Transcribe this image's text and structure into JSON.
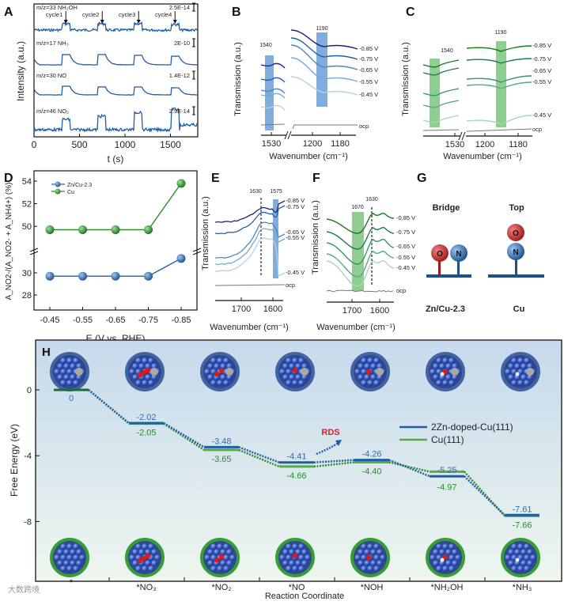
{
  "colors": {
    "blue_dark": "#1a237e",
    "blue": "#1f5fa8",
    "blue_band": "#6b9fd6",
    "green": "#2e8b2e",
    "green_band": "#7cc47c",
    "red": "#e02020"
  },
  "chart_data": [
    {
      "panel": "A",
      "type": "line",
      "xlabel": "t (s)",
      "ylabel": "Intensity (a.u.)",
      "xlim": [
        0,
        1800
      ],
      "xticks": [
        "0",
        "500",
        "1000",
        "1500"
      ],
      "cycles": [
        "cycle1",
        "cycle2",
        "cycle3",
        "cycle4"
      ],
      "cycle_times": [
        350,
        750,
        1150,
        1550
      ],
      "series": [
        {
          "name": "m/z=33 NH₂OH",
          "scale": "2.5E-14"
        },
        {
          "name": "m/z=17 NH₃",
          "scale": "2E-10"
        },
        {
          "name": "m/z=30 NO",
          "scale": "1.4E-12"
        },
        {
          "name": "m/z=46 NO₂",
          "scale": "2.9E-14"
        }
      ]
    },
    {
      "panel": "B",
      "type": "line",
      "xlabel": "Wavenumber (cm⁻¹)",
      "ylabel": "Transmission (a.u.)",
      "xticks": [
        "1530",
        "1200",
        "1180"
      ],
      "bands": [
        "1540",
        "1190"
      ],
      "series": [
        "-0.85 V",
        "-0.75 V",
        "-0.65 V",
        "-0.55 V",
        "-0.45 V",
        "ocp"
      ]
    },
    {
      "panel": "C",
      "type": "line",
      "xlabel": "Wavenumber (cm⁻¹)",
      "ylabel": "Transmission (a.u.)",
      "xticks": [
        "1530",
        "1200",
        "1180"
      ],
      "bands": [
        "1540",
        "1190"
      ],
      "series": [
        "-0.85 V",
        "-0.75 V",
        "-0.65 V",
        "-0.55 V",
        "-0.45 V",
        "ocp"
      ]
    },
    {
      "panel": "D",
      "type": "line",
      "xlabel": "E (V vs. RHE)",
      "ylabel": "A_NO2-/(A_NO2- + A_NH4+) (%)",
      "categories": [
        "-0.45",
        "-0.55",
        "-0.65",
        "-0.75",
        "-0.85"
      ],
      "yticks": [
        "54",
        "52",
        "50",
        "30",
        "28"
      ],
      "series": [
        {
          "name": "Zn/Cu-2.3",
          "values": [
            29.7,
            29.7,
            29.7,
            29.7,
            31.3
          ]
        },
        {
          "name": "Cu",
          "values": [
            49.7,
            49.7,
            49.7,
            49.7,
            53.8
          ]
        }
      ]
    },
    {
      "panel": "E",
      "type": "line",
      "xlabel": "Wavenumber (cm⁻¹)",
      "ylabel": "Transmission (a.u.)",
      "xticks": [
        "1700",
        "1600"
      ],
      "markers": [
        "1630",
        "1575"
      ],
      "series": [
        "-0.85 V",
        "-0.75 V",
        "-0.65 V",
        "-0.55 V",
        "-0.45 V",
        "ocp"
      ]
    },
    {
      "panel": "F",
      "type": "line",
      "xlabel": "Wavenumber (cm⁻¹)",
      "ylabel": "Transmission (a.u.)",
      "xticks": [
        "1700",
        "1600"
      ],
      "markers": [
        "1670",
        "1630"
      ],
      "series": [
        "-0.85 V",
        "-0.75 V",
        "-0.65 V",
        "-0.55 V",
        "-0.45 V",
        "ocp"
      ]
    },
    {
      "panel": "H",
      "type": "line",
      "xlabel": "Reaction Coordinate",
      "ylabel": "Free Energy (eV)",
      "yticks": [
        "0",
        "-4",
        "-8"
      ],
      "categories": [
        "*",
        "*NO₃",
        "*NO₂",
        "*NO",
        "*NOH",
        "*NH₂OH",
        "*NH₃"
      ],
      "series": [
        {
          "name": "2Zn-doped-Cu(111)",
          "values": [
            0,
            -2.02,
            -3.48,
            -4.41,
            -4.26,
            -5.25,
            -7.61
          ],
          "labels": [
            "0",
            "-2.02",
            "-3.48",
            "-4.41",
            "-4.26",
            "-5.25",
            "-7.61"
          ]
        },
        {
          "name": "Cu(111)",
          "values": [
            0,
            -2.05,
            -3.65,
            -4.66,
            -4.4,
            -4.97,
            -7.66
          ],
          "labels": [
            "",
            "-2.05",
            "-3.65",
            "-4.66",
            "-4.40",
            "-4.97",
            "-7.66"
          ]
        }
      ],
      "annotation": "RDS"
    }
  ],
  "panel_g": {
    "letter": "G",
    "bridge": "Bridge",
    "top": "Top",
    "o": "O",
    "n": "N",
    "left_label": "Zn/Cu-2.3",
    "right_label": "Cu"
  },
  "watermark": "大数跨境"
}
